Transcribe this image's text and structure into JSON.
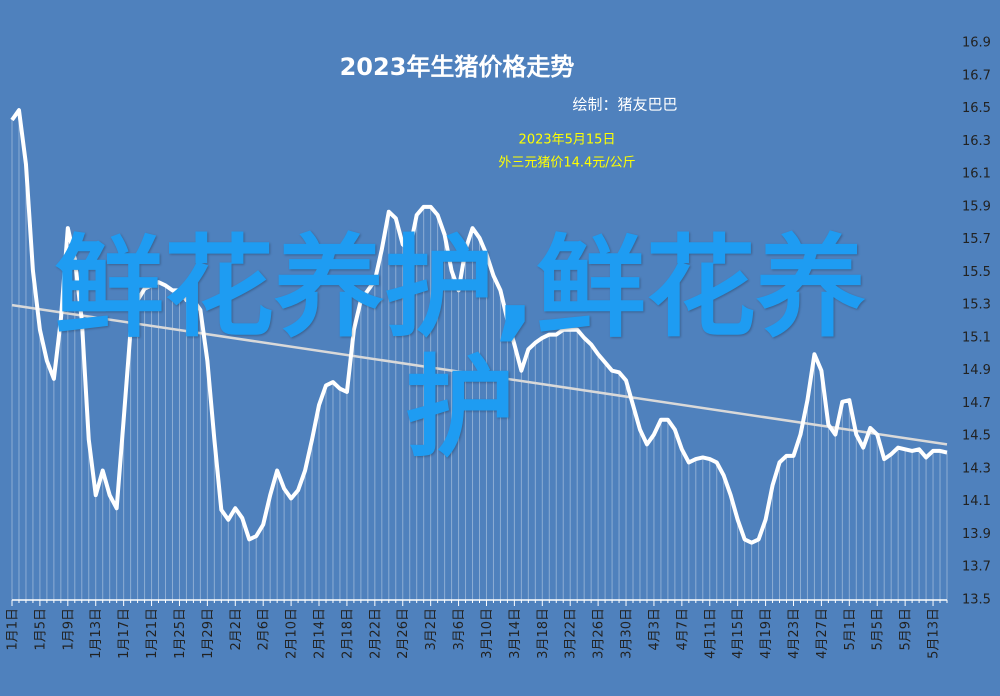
{
  "chart_data": {
    "type": "line",
    "title": "2023年生猪价格走势",
    "subtitle": "绘制：猪友巴巴",
    "annotation": [
      "2023年5月15日",
      "外三元猪价14.4元/公斤"
    ],
    "watermark": "鲜花养护,鲜花养护",
    "color": "#ffffff",
    "trend": [
      15.3,
      14.45
    ],
    "trend_color": "#d9d9d9",
    "ylim": [
      13.5,
      16.9
    ],
    "yticks": [
      13.5,
      13.7,
      13.9,
      14.1,
      14.3,
      14.5,
      14.7,
      14.9,
      15.1,
      15.3,
      15.5,
      15.7,
      15.9,
      16.1,
      16.3,
      16.5,
      16.7,
      16.9
    ],
    "categories": [
      "1月1日",
      null,
      null,
      null,
      "1月5日",
      null,
      null,
      null,
      "1月9日",
      null,
      null,
      null,
      "1月13日",
      null,
      null,
      null,
      "1月17日",
      null,
      null,
      null,
      "1月21日",
      null,
      null,
      null,
      "1月25日",
      null,
      null,
      null,
      "1月29日",
      null,
      null,
      null,
      "2月2日",
      null,
      null,
      null,
      "2月6日",
      null,
      null,
      null,
      "2月10日",
      null,
      null,
      null,
      "2月14日",
      null,
      null,
      null,
      "2月18日",
      null,
      null,
      null,
      "2月22日",
      null,
      null,
      null,
      "2月26日",
      null,
      null,
      null,
      "3月2日",
      null,
      null,
      null,
      "3月6日",
      null,
      null,
      null,
      "3月10日",
      null,
      null,
      null,
      "3月14日",
      null,
      null,
      null,
      "3月18日",
      null,
      null,
      null,
      "3月22日",
      null,
      null,
      null,
      "3月26日",
      null,
      null,
      null,
      "3月30日",
      null,
      null,
      null,
      "4月3日",
      null,
      null,
      null,
      "4月7日",
      null,
      null,
      null,
      "4月11日",
      null,
      null,
      null,
      "4月15日",
      null,
      null,
      null,
      "4月19日",
      null,
      null,
      null,
      "4月23日",
      null,
      null,
      null,
      "4月27日",
      null,
      null,
      null,
      "5月1日",
      null,
      null,
      null,
      "5月5日",
      null,
      null,
      null,
      "5月9日",
      null,
      null,
      null,
      "5月13日",
      null,
      null
    ],
    "values": [
      16.43,
      16.49,
      16.16,
      15.51,
      15.15,
      14.96,
      14.85,
      15.21,
      15.77,
      15.58,
      15.21,
      14.48,
      14.14,
      14.29,
      14.14,
      14.06,
      14.6,
      15.15,
      15.33,
      15.4,
      15.42,
      15.44,
      15.42,
      15.39,
      15.39,
      15.33,
      15.33,
      15.27,
      14.96,
      14.48,
      14.05,
      13.99,
      14.06,
      14.0,
      13.87,
      13.89,
      13.96,
      14.14,
      14.29,
      14.18,
      14.12,
      14.17,
      14.29,
      14.48,
      14.69,
      14.81,
      14.83,
      14.79,
      14.77,
      15.15,
      15.33,
      15.39,
      15.45,
      15.64,
      15.87,
      15.83,
      15.67,
      15.64,
      15.85,
      15.9,
      15.9,
      15.85,
      15.73,
      15.51,
      15.39,
      15.64,
      15.77,
      15.71,
      15.61,
      15.48,
      15.39,
      15.21,
      15.06,
      14.9,
      15.03,
      15.07,
      15.1,
      15.12,
      15.12,
      15.15,
      15.15,
      15.15,
      15.1,
      15.06,
      15.0,
      14.95,
      14.9,
      14.89,
      14.84,
      14.69,
      14.54,
      14.45,
      14.51,
      14.6,
      14.6,
      14.54,
      14.42,
      14.34,
      14.36,
      14.37,
      14.36,
      14.34,
      14.26,
      14.14,
      13.99,
      13.87,
      13.85,
      13.87,
      13.99,
      14.2,
      14.34,
      14.38,
      14.38,
      14.51,
      14.72,
      15.0,
      14.9,
      14.57,
      14.51,
      14.71,
      14.72,
      14.51,
      14.43,
      14.55,
      14.51,
      14.36,
      14.39,
      14.43,
      14.42,
      14.41,
      14.42,
      14.37,
      14.41,
      14.41,
      14.4
    ]
  }
}
